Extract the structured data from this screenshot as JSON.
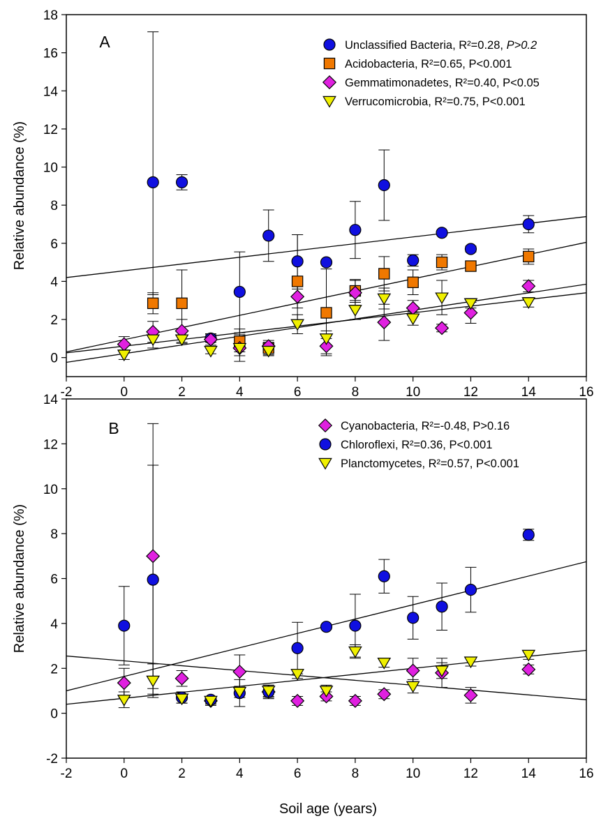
{
  "figure": {
    "xlabel": "Soil age (years)"
  },
  "chart_data": [
    {
      "type": "scatter",
      "panel_label": "A",
      "ylabel": "Relative abundance (%)",
      "xlim": [
        -2,
        16
      ],
      "ylim": [
        -1,
        18
      ],
      "xticks": [
        -2,
        0,
        2,
        4,
        6,
        8,
        10,
        12,
        14,
        16
      ],
      "yticks": [
        0,
        2,
        4,
        6,
        8,
        10,
        12,
        14,
        16,
        18
      ],
      "grid": false,
      "legend_position": "top-right",
      "series": [
        {
          "name": "Unclassified Bacteria",
          "stat_r2": ", R²=0.28, ",
          "stat_p": "P>0.2",
          "p_italic": true,
          "marker": "circle",
          "color": "#1010e0",
          "x": [
            1,
            2,
            3,
            4,
            5,
            6,
            7,
            8,
            9,
            10,
            11,
            12,
            14
          ],
          "y": [
            9.2,
            9.2,
            1.0,
            3.45,
            6.4,
            5.05,
            5.0,
            6.7,
            9.05,
            5.1,
            6.55,
            5.7,
            7.0
          ],
          "err_hi": [
            17.1,
            9.6,
            1.2,
            5.55,
            7.75,
            6.45,
            5.1,
            8.2,
            10.9,
            5.4,
            6.65,
            5.85,
            7.45
          ],
          "err_lo": [
            3.3,
            8.8,
            0.8,
            1.3,
            5.05,
            3.6,
            4.9,
            5.2,
            7.2,
            4.8,
            6.45,
            5.55,
            6.55
          ],
          "fit": {
            "x0": -2,
            "y0": 4.2,
            "x1": 16,
            "y1": 7.4
          }
        },
        {
          "name": "Acidobacteria",
          "stat_r2": ", R²=0.65, ",
          "stat_p": "P<0.001",
          "p_italic": false,
          "marker": "square",
          "color": "#f07800",
          "x": [
            1,
            2,
            4,
            5,
            6,
            7,
            8,
            9,
            10,
            11,
            12,
            14
          ],
          "y": [
            2.85,
            2.85,
            0.85,
            0.5,
            4.0,
            2.35,
            3.5,
            4.4,
            3.95,
            5.0,
            4.8,
            5.3
          ],
          "err_hi": [
            3.4,
            4.6,
            1.5,
            0.8,
            6.45,
            4.65,
            4.1,
            5.3,
            4.6,
            5.4,
            4.95,
            5.7
          ],
          "err_lo": [
            2.3,
            1.1,
            0.3,
            0.15,
            1.9,
            0.1,
            2.9,
            3.5,
            3.3,
            4.6,
            4.65,
            4.9
          ],
          "fit": {
            "x0": -2,
            "y0": 0.3,
            "x1": 16,
            "y1": 6.05
          }
        },
        {
          "name": "Gemmatimonadetes",
          "stat_r2": ", R²=0.40, ",
          "stat_p": "P<0.05",
          "p_italic": false,
          "marker": "diamond",
          "color": "#e020e0",
          "x": [
            0,
            1,
            2,
            3,
            4,
            5,
            6,
            7,
            8,
            9,
            10,
            11,
            12,
            14
          ],
          "y": [
            0.7,
            1.35,
            1.4,
            0.95,
            0.5,
            0.6,
            3.2,
            0.6,
            3.4,
            1.85,
            2.6,
            1.55,
            2.35,
            3.75
          ],
          "err_hi": [
            1.1,
            1.9,
            2.0,
            1.25,
            0.9,
            0.9,
            3.8,
            1.0,
            4.05,
            2.8,
            3.0,
            1.75,
            2.9,
            4.05
          ],
          "err_lo": [
            0.3,
            0.8,
            0.8,
            0.65,
            0.1,
            0.3,
            2.6,
            0.2,
            2.75,
            0.9,
            2.2,
            1.35,
            1.8,
            3.45
          ],
          "fit": {
            "x0": -2,
            "y0": -0.25,
            "x1": 16,
            "y1": 3.85
          }
        },
        {
          "name": "Verrucomicrobia",
          "stat_r2": ", R²=0.75, ",
          "stat_p": "P<0.001",
          "p_italic": false,
          "marker": "triangle-down",
          "color": "#f0f000",
          "x": [
            0,
            1,
            2,
            3,
            4,
            5,
            6,
            7,
            8,
            9,
            10,
            11,
            12,
            14
          ],
          "y": [
            0.15,
            0.95,
            0.95,
            0.35,
            0.5,
            0.35,
            1.75,
            1.0,
            2.5,
            3.1,
            2.05,
            3.15,
            2.85,
            2.9
          ],
          "err_hi": [
            0.4,
            1.4,
            1.15,
            0.5,
            1.2,
            0.6,
            2.25,
            1.4,
            3.0,
            3.65,
            2.4,
            4.05,
            3.1,
            3.15
          ],
          "err_lo": [
            -0.1,
            0.5,
            0.75,
            0.2,
            -0.2,
            0.1,
            1.25,
            0.6,
            2.0,
            2.55,
            1.7,
            2.25,
            2.6,
            2.65
          ],
          "fit": {
            "x0": -2,
            "y0": 0.25,
            "x1": 16,
            "y1": 3.4
          }
        }
      ]
    },
    {
      "type": "scatter",
      "panel_label": "B",
      "ylabel": "Relative abundance (%)",
      "xlim": [
        -2,
        16
      ],
      "ylim": [
        -2,
        14
      ],
      "xticks": [
        -2,
        0,
        2,
        4,
        6,
        8,
        10,
        12,
        14,
        16
      ],
      "yticks": [
        -2,
        0,
        2,
        4,
        6,
        8,
        10,
        12,
        14
      ],
      "grid": false,
      "legend_position": "top-right",
      "series": [
        {
          "name": "Cyanobacteria",
          "stat_r2": ", R²=-0.48, ",
          "stat_p": "P>0.16",
          "p_italic": false,
          "marker": "diamond",
          "color": "#e020e0",
          "x": [
            0,
            1,
            2,
            3,
            4,
            5,
            6,
            7,
            8,
            9,
            10,
            11,
            12,
            14
          ],
          "y": [
            1.35,
            7.0,
            1.55,
            0.55,
            1.85,
            0.95,
            0.55,
            0.75,
            0.55,
            0.85,
            1.9,
            1.8,
            0.8,
            1.95
          ],
          "err_hi": [
            2.0,
            12.9,
            1.9,
            0.75,
            2.6,
            1.25,
            0.75,
            0.95,
            0.75,
            1.05,
            2.45,
            2.45,
            1.15,
            2.15
          ],
          "err_lo": [
            0.7,
            1.1,
            1.2,
            0.35,
            1.1,
            0.65,
            0.35,
            0.55,
            0.35,
            0.65,
            1.35,
            1.15,
            0.45,
            1.75
          ],
          "fit": {
            "x0": -2,
            "y0": 2.55,
            "x1": 16,
            "y1": 0.6
          }
        },
        {
          "name": "Chloroflexi",
          "stat_r2": ", R²=0.36, ",
          "stat_p": "P<0.001",
          "p_italic": false,
          "marker": "circle",
          "color": "#1010e0",
          "x": [
            0,
            1,
            2,
            3,
            4,
            5,
            6,
            7,
            8,
            9,
            10,
            11,
            12,
            14
          ],
          "y": [
            3.9,
            5.95,
            0.7,
            0.6,
            0.9,
            0.95,
            2.9,
            3.85,
            3.9,
            6.1,
            4.25,
            4.75,
            5.5,
            7.95
          ],
          "err_hi": [
            5.65,
            11.05,
            0.95,
            0.75,
            1.5,
            1.2,
            4.05,
            3.95,
            5.3,
            6.85,
            5.2,
            5.8,
            6.5,
            8.2
          ],
          "err_lo": [
            2.15,
            0.85,
            0.45,
            0.45,
            0.3,
            0.7,
            1.75,
            3.75,
            2.5,
            5.35,
            3.3,
            3.7,
            4.5,
            7.7
          ],
          "fit": {
            "x0": -2,
            "y0": 1.0,
            "x1": 16,
            "y1": 6.75
          }
        },
        {
          "name": "Planctomycetes",
          "stat_r2": ", R²=0.57, ",
          "stat_p": "P<0.001",
          "p_italic": false,
          "marker": "triangle-down",
          "color": "#f0f000",
          "x": [
            0,
            1,
            2,
            3,
            4,
            5,
            6,
            7,
            8,
            9,
            10,
            11,
            12,
            14
          ],
          "y": [
            0.6,
            1.45,
            0.65,
            0.55,
            0.95,
            1.0,
            1.75,
            1.0,
            2.75,
            2.25,
            1.2,
            1.9,
            2.3,
            2.6
          ],
          "err_hi": [
            0.95,
            2.2,
            0.85,
            0.7,
            1.2,
            1.25,
            1.95,
            1.25,
            3.05,
            2.45,
            1.5,
            2.25,
            2.5,
            2.8
          ],
          "err_lo": [
            0.25,
            0.7,
            0.45,
            0.4,
            0.7,
            0.75,
            1.55,
            0.75,
            2.45,
            2.05,
            0.9,
            1.55,
            2.1,
            2.4
          ],
          "fit": {
            "x0": -2,
            "y0": 0.4,
            "x1": 16,
            "y1": 2.8
          }
        }
      ]
    }
  ]
}
